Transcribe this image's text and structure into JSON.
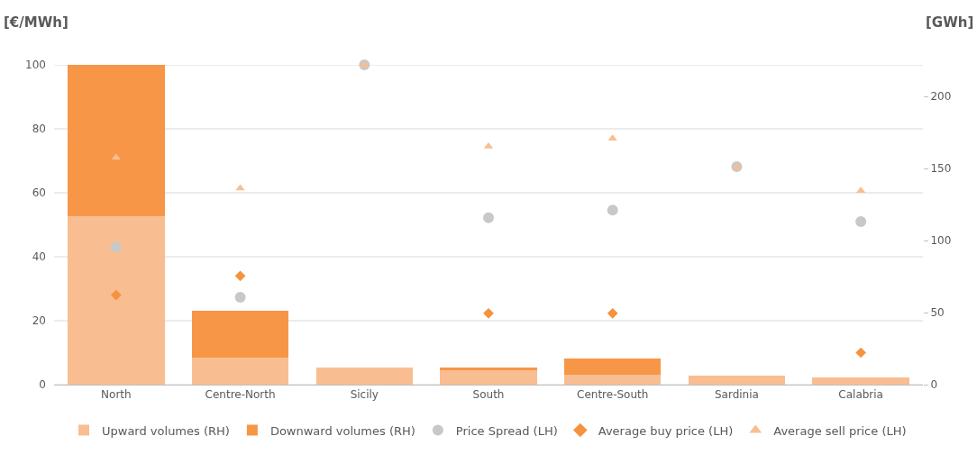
{
  "chart_data": {
    "type": "bar",
    "stacked": true,
    "ylabel": "[€/MWh]",
    "y2label": "[GWh]",
    "categories": [
      "North",
      "Centre-North",
      "Sicily",
      "South",
      "Centre-South",
      "Sardinia",
      "Calabria"
    ],
    "series": [
      {
        "name": "Upward volumes (RH)",
        "axis": "y2",
        "color": "#f8be91",
        "values": [
          117,
          19,
          12,
          10,
          7,
          6.4,
          4.7
        ]
      },
      {
        "name": "Downward volumes (RH)",
        "axis": "y2",
        "color": "#f79646",
        "values": [
          105,
          32,
          0,
          1.6,
          11,
          0,
          0
        ]
      },
      {
        "name": "Price Spread (LH)",
        "type": "scatter",
        "marker": "circle",
        "color": "#c8c8c8",
        "values": [
          43,
          27.3,
          100,
          52.2,
          54.6,
          68.2,
          51
        ]
      },
      {
        "name": "Average buy price (LH)",
        "type": "scatter",
        "marker": "diamond",
        "color": "#f5923e",
        "values": [
          28,
          34,
          null,
          22.3,
          22.3,
          null,
          10
        ]
      },
      {
        "name": "Average sell price (LH)",
        "type": "scatter",
        "marker": "triangle",
        "color": "#f8be91",
        "values": [
          71,
          61.4,
          100,
          74.5,
          77,
          68,
          60.6
        ]
      }
    ],
    "ylim": [
      0,
      100
    ],
    "yticks": [
      0,
      20,
      40,
      60,
      80,
      100
    ],
    "y2lim": [
      0,
      222
    ],
    "y2ticks": [
      0,
      50,
      100,
      150,
      200
    ],
    "grid": "y",
    "legend": "bottom"
  }
}
